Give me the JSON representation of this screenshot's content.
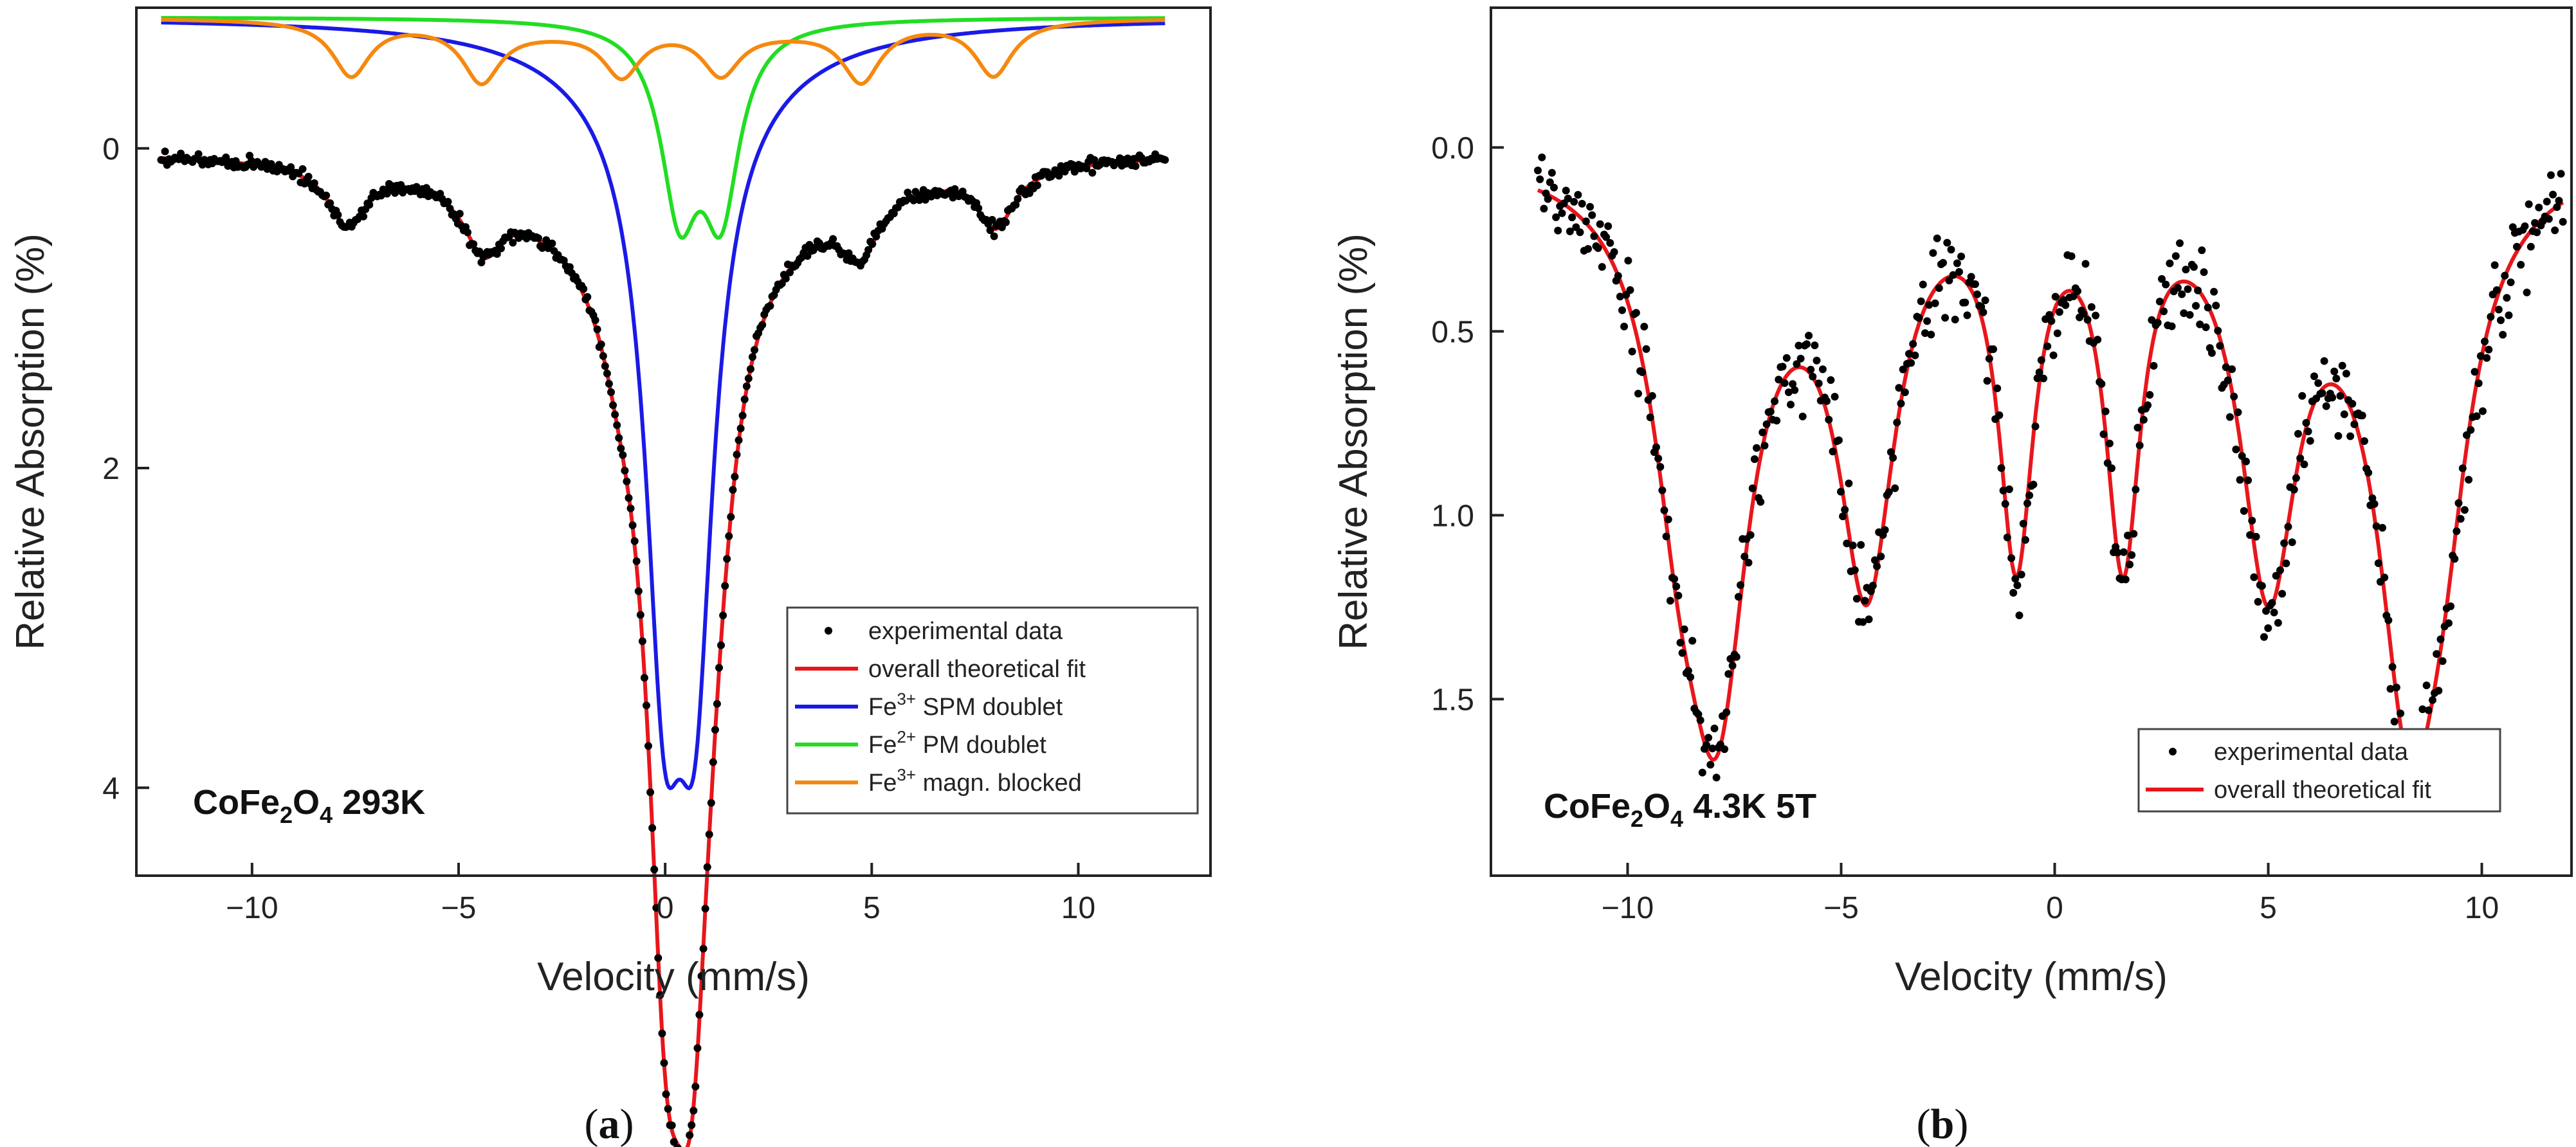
{
  "chart_data": [
    {
      "panel": "a",
      "panel_label": "a",
      "type": "line",
      "xlabel": "Velocity (mm/s)",
      "ylabel": "Relative Absorption (%)",
      "xlim": [
        -12.8,
        13.2
      ],
      "ylim": [
        4.55,
        -0.88
      ],
      "y_inverted": true,
      "x_ticks": [
        -10,
        -5,
        0,
        5,
        10
      ],
      "x_tick_labels": [
        "−10",
        "−5",
        "0",
        "5",
        "10"
      ],
      "y_ticks": [
        0,
        2,
        4
      ],
      "y_tick_labels": [
        "0",
        "2",
        "4"
      ],
      "sample_label": {
        "prefix": "CoFe",
        "sub1": "2",
        "mid": "O",
        "sub2": "4",
        "suffix": " 293K"
      },
      "legend": {
        "placement": "bottom-right",
        "entries": [
          {
            "label": "experimental data",
            "sup": "",
            "rest": "",
            "style": "dot",
            "color": "#000000"
          },
          {
            "label": "overall theoretical fit",
            "sup": "",
            "rest": "",
            "style": "line",
            "color": "#e8161b"
          },
          {
            "label": "Fe",
            "sup": "3+",
            "rest": " SPM doublet",
            "style": "line",
            "color": "#1a1ae6"
          },
          {
            "label": "Fe",
            "sup": "2+",
            "rest": " PM doublet",
            "style": "line",
            "color": "#22dd22"
          },
          {
            "label": "Fe",
            "sup": "3+",
            "rest": " magn. blocked",
            "style": "line",
            "color": "#f5890f"
          }
        ]
      },
      "data_noise": 0.03,
      "x_range": [
        -12.2,
        12.1
      ],
      "series": [
        {
          "name": "overall theoretical fit",
          "color": "#e8161b",
          "baseline": 0.0,
          "peaks": [
            {
              "x": -7.7,
              "d": 0.36,
              "w": 0.55
            },
            {
              "x": -4.4,
              "d": 0.36,
              "w": 0.55
            },
            {
              "x": -1.1,
              "d": 0.3,
              "w": 0.55
            },
            {
              "x": 1.35,
              "d": 0.3,
              "w": 0.55
            },
            {
              "x": 4.7,
              "d": 0.36,
              "w": 0.55
            },
            {
              "x": 8.0,
              "d": 0.36,
              "w": 0.55
            },
            {
              "x": 0.0,
              "d": 3.4,
              "w": 0.55
            },
            {
              "x": 0.65,
              "d": 3.5,
              "w": 0.55
            },
            {
              "x": 0.3,
              "d": 0.38,
              "w": 0.5
            },
            {
              "x": 1.1,
              "d": 0.52,
              "w": 0.5
            },
            {
              "x": 0.35,
              "d": 0.35,
              "w": 3.6
            },
            {
              "x": -2.0,
              "d": 0.1,
              "w": 2.8
            },
            {
              "x": 2.4,
              "d": 0.1,
              "w": 2.8
            }
          ]
        },
        {
          "name": "Fe3+ SPM doublet",
          "color": "#1a1ae6",
          "baseline": -0.82,
          "peaks": [
            {
              "x": -0.02,
              "d": 3.1,
              "w": 0.55
            },
            {
              "x": 0.72,
              "d": 3.1,
              "w": 0.55
            },
            {
              "x": 0.35,
              "d": 0.5,
              "w": 2.6
            }
          ]
        },
        {
          "name": "Fe2+ PM doublet",
          "color": "#22dd22",
          "baseline": -0.82,
          "peaks": [
            {
              "x": 0.35,
              "d": 1.11,
              "w": 0.55
            },
            {
              "x": 1.35,
              "d": 1.11,
              "w": 0.55
            }
          ]
        },
        {
          "name": "Fe3+ magn. blocked",
          "color": "#f5890f",
          "baseline": -0.82,
          "peaks": [
            {
              "x": -7.6,
              "d": 0.34,
              "w": 0.55
            },
            {
              "x": -4.45,
              "d": 0.34,
              "w": 0.55
            },
            {
              "x": -1.05,
              "d": 0.29,
              "w": 0.55
            },
            {
              "x": 1.35,
              "d": 0.28,
              "w": 0.55
            },
            {
              "x": 4.75,
              "d": 0.34,
              "w": 0.55
            },
            {
              "x": 7.95,
              "d": 0.34,
              "w": 0.55
            },
            {
              "x": -2.8,
              "d": 0.07,
              "w": 2.6
            },
            {
              "x": 3.0,
              "d": 0.07,
              "w": 2.6
            }
          ]
        }
      ]
    },
    {
      "panel": "b",
      "panel_label": "b",
      "type": "line",
      "xlabel": "Velocity (mm/s)",
      "ylabel": "Relative Absorption (%)",
      "xlim": [
        -13.2,
        12.1
      ],
      "ylim": [
        1.98,
        -0.38
      ],
      "y_inverted": true,
      "x_ticks": [
        -10,
        -5,
        0,
        5,
        10
      ],
      "x_tick_labels": [
        "−10",
        "−5",
        "0",
        "5",
        "10"
      ],
      "y_ticks": [
        0.0,
        0.5,
        1.0,
        1.5
      ],
      "y_tick_labels": [
        "0.0",
        "0.5",
        "1.0",
        "1.5"
      ],
      "sample_label": {
        "prefix": "CoFe",
        "sub1": "2",
        "mid": "O",
        "sub2": "4",
        "suffix": " 4.3K 5T"
      },
      "legend": {
        "placement": "bottom-right",
        "entries": [
          {
            "label": "experimental data",
            "sup": "",
            "rest": "",
            "style": "dot",
            "color": "#000000"
          },
          {
            "label": "overall theoretical fit",
            "sup": "",
            "rest": "",
            "style": "line",
            "color": "#e8161b"
          }
        ]
      },
      "data_noise": 0.09,
      "x_range": [
        -12.1,
        11.9
      ],
      "series": [
        {
          "name": "overall theoretical fit",
          "color": "#e8161b",
          "baseline": 0.0,
          "peaks": [
            {
              "x": -7.9,
              "d": 1.3,
              "w": 0.9
            },
            {
              "x": -8.8,
              "d": 0.55,
              "w": 0.8
            },
            {
              "x": -4.4,
              "d": 1.05,
              "w": 0.8
            },
            {
              "x": -0.9,
              "d": 1.0,
              "w": 0.5
            },
            {
              "x": 1.6,
              "d": 1.0,
              "w": 0.5
            },
            {
              "x": 5.0,
              "d": 1.05,
              "w": 0.8
            },
            {
              "x": 8.3,
              "d": 1.3,
              "w": 0.9
            },
            {
              "x": 9.1,
              "d": 0.5,
              "w": 0.8
            },
            {
              "x": -5.9,
              "d": 0.08,
              "w": 2.0
            },
            {
              "x": 6.7,
              "d": 0.08,
              "w": 2.0
            }
          ]
        }
      ]
    }
  ]
}
